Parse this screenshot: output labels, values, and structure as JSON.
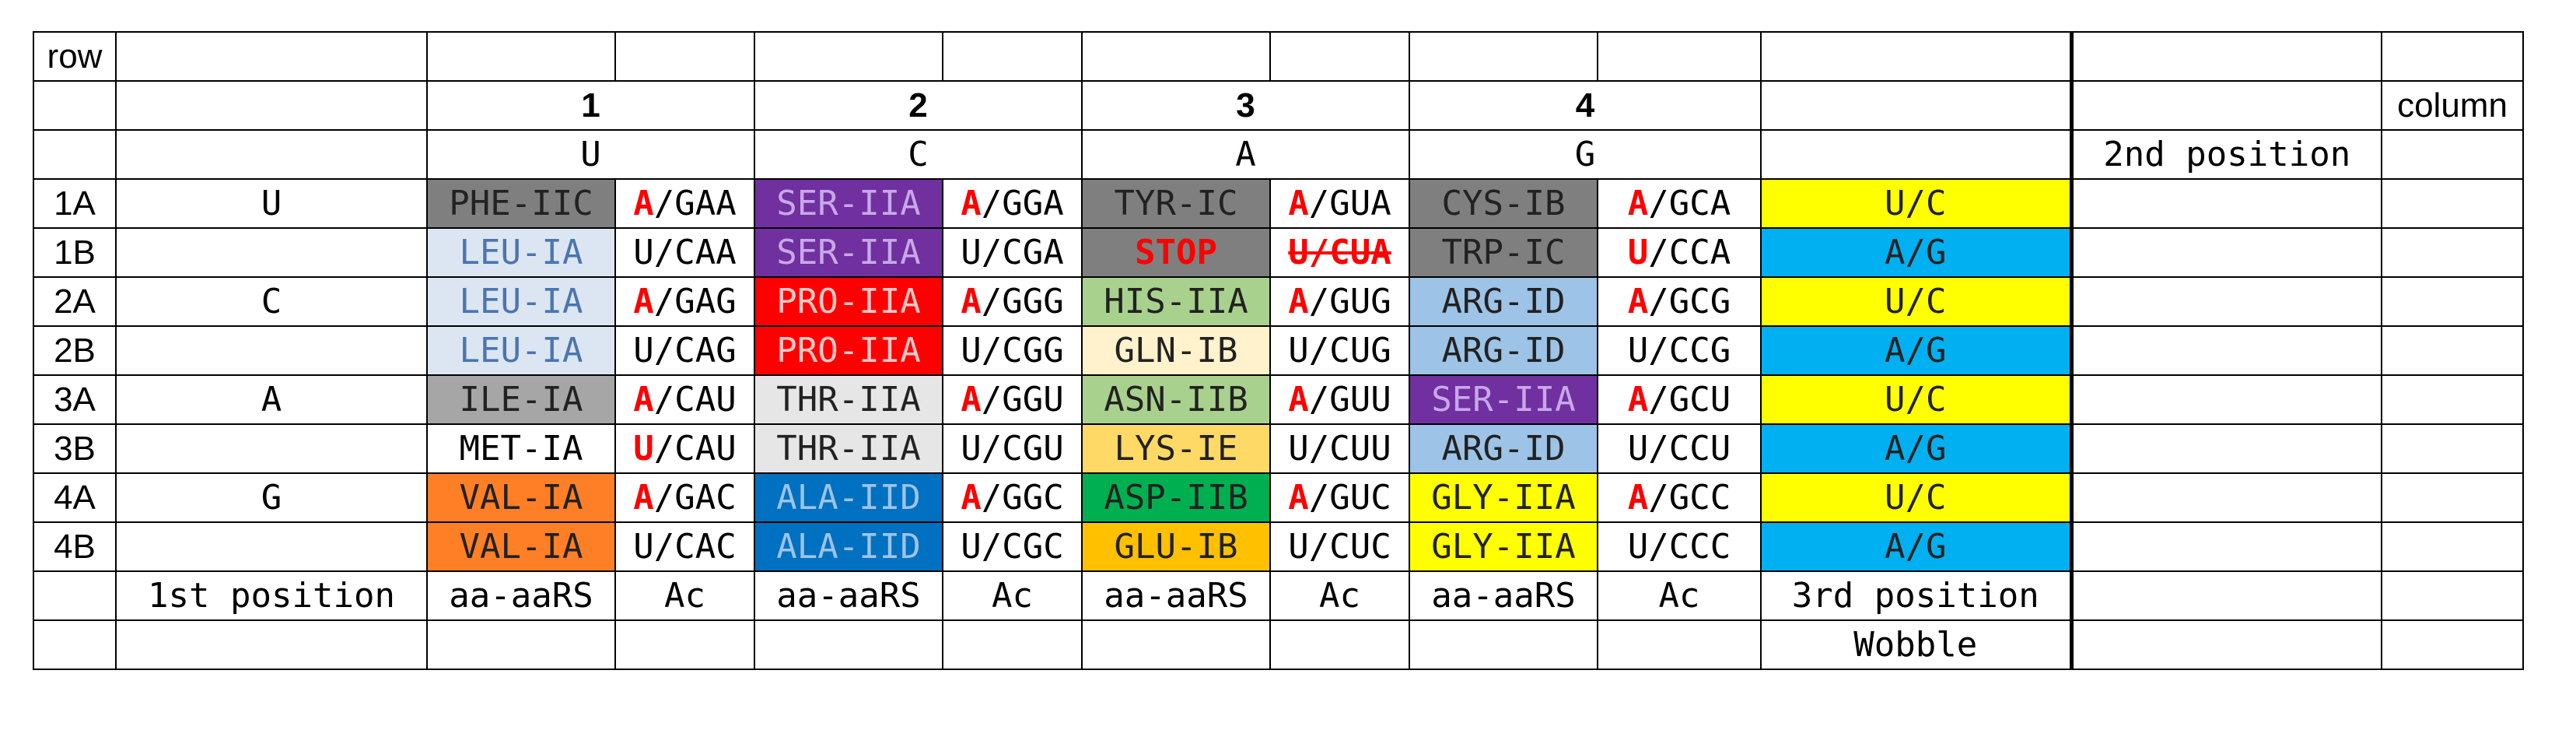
{
  "header": {
    "row_label": "row",
    "column_label": "column",
    "col_numbers": [
      "1",
      "2",
      "3",
      "4"
    ],
    "col_bases": [
      "U",
      "C",
      "A",
      "G"
    ],
    "second_position": "2nd position"
  },
  "rows": [
    {
      "id": "1A",
      "first": "U",
      "cells": [
        {
          "aa": "PHE-IIC",
          "color": "c-gray",
          "ac_pre": "A",
          "ac_post": "/GAA",
          "ac_pre_red": true
        },
        {
          "aa": "SER-IIA",
          "color": "c-purple",
          "ac_pre": "A",
          "ac_post": "/GGA",
          "ac_pre_red": true
        },
        {
          "aa": "TYR-IC",
          "color": "c-gray",
          "ac_pre": "A",
          "ac_post": "/GUA",
          "ac_pre_red": true
        },
        {
          "aa": "CYS-IB",
          "color": "c-gray",
          "ac_pre": "A",
          "ac_post": "/GCA",
          "ac_pre_red": true
        }
      ],
      "wobble": "U/C",
      "wobble_color": "c-yellow"
    },
    {
      "id": "1B",
      "first": "",
      "cells": [
        {
          "aa": "LEU-IA",
          "color": "c-lblue",
          "ac_pre": "",
          "ac_post": "U/CAA"
        },
        {
          "aa": "SER-IIA",
          "color": "c-purple",
          "ac_pre": "",
          "ac_post": "U/CGA"
        },
        {
          "aa": "STOP",
          "color": "c-gray",
          "stop": true,
          "ac_strike": "U/CUA"
        },
        {
          "aa": "TRP-IC",
          "color": "c-gray",
          "ac_pre": "U",
          "ac_post": "/CCA",
          "ac_pre_red": true
        }
      ],
      "wobble": "A/G",
      "wobble_color": "c-cyan"
    },
    {
      "id": "2A",
      "first": "C",
      "cells": [
        {
          "aa": "LEU-IA",
          "color": "c-lblue",
          "ac_pre": "A",
          "ac_post": "/GAG",
          "ac_pre_red": true
        },
        {
          "aa": "PRO-IIA",
          "color": "c-red",
          "ac_pre": "A",
          "ac_post": "/GGG",
          "ac_pre_red": true
        },
        {
          "aa": "HIS-IIA",
          "color": "c-lgreen",
          "ac_pre": "A",
          "ac_post": "/GUG",
          "ac_pre_red": true
        },
        {
          "aa": "ARG-ID",
          "color": "c-sky",
          "ac_pre": "A",
          "ac_post": "/GCG",
          "ac_pre_red": true
        }
      ],
      "wobble": "U/C",
      "wobble_color": "c-yellow"
    },
    {
      "id": "2B",
      "first": "",
      "cells": [
        {
          "aa": "LEU-IA",
          "color": "c-lblue",
          "ac_pre": "",
          "ac_post": "U/CAG"
        },
        {
          "aa": "PRO-IIA",
          "color": "c-red",
          "ac_pre": "",
          "ac_post": "U/CGG"
        },
        {
          "aa": "GLN-IB",
          "color": "c-cream",
          "ac_pre": "",
          "ac_post": "U/CUG"
        },
        {
          "aa": "ARG-ID",
          "color": "c-sky",
          "ac_pre": "",
          "ac_post": "U/CCG"
        }
      ],
      "wobble": "A/G",
      "wobble_color": "c-cyan"
    },
    {
      "id": "3A",
      "first": "A",
      "cells": [
        {
          "aa": "ILE-IA",
          "color": "c-dgray",
          "ac_pre": "A",
          "ac_post": "/CAU",
          "ac_pre_red": true
        },
        {
          "aa": "THR-IIA",
          "color": "c-lgray",
          "ac_pre": "A",
          "ac_post": "/GGU",
          "ac_pre_red": true
        },
        {
          "aa": "ASN-IIB",
          "color": "c-lgreen",
          "ac_pre": "A",
          "ac_post": "/GUU",
          "ac_pre_red": true
        },
        {
          "aa": "SER-IIA",
          "color": "c-purple",
          "ac_pre": "A",
          "ac_post": "/GCU",
          "ac_pre_red": true
        }
      ],
      "wobble": "U/C",
      "wobble_color": "c-yellow"
    },
    {
      "id": "3B",
      "first": "",
      "cells": [
        {
          "aa": "MET-IA",
          "color": "",
          "ac_pre": "U",
          "ac_post": "/CAU",
          "ac_pre_red": true
        },
        {
          "aa": "THR-IIA",
          "color": "c-lgray",
          "ac_pre": "",
          "ac_post": "U/CGU"
        },
        {
          "aa": "LYS-IE",
          "color": "c-gold",
          "ac_pre": "",
          "ac_post": "U/CUU"
        },
        {
          "aa": "ARG-ID",
          "color": "c-sky",
          "ac_pre": "",
          "ac_post": "U/CCU"
        }
      ],
      "wobble": "A/G",
      "wobble_color": "c-cyan"
    },
    {
      "id": "4A",
      "first": "G",
      "cells": [
        {
          "aa": "VAL-IA",
          "color": "c-vorange",
          "ac_pre": "A",
          "ac_post": "/GAC",
          "ac_pre_red": true
        },
        {
          "aa": "ALA-IID",
          "color": "c-dblue",
          "ac_pre": "A",
          "ac_post": "/GGC",
          "ac_pre_red": true
        },
        {
          "aa": "ASP-IIB",
          "color": "c-green",
          "ac_pre": "A",
          "ac_post": "/GUC",
          "ac_pre_red": true
        },
        {
          "aa": "GLY-IIA",
          "color": "c-yellow",
          "ac_pre": "A",
          "ac_post": "/GCC",
          "ac_pre_red": true
        }
      ],
      "wobble": "U/C",
      "wobble_color": "c-yellow"
    },
    {
      "id": "4B",
      "first": "",
      "cells": [
        {
          "aa": "VAL-IA",
          "color": "c-vorange",
          "ac_pre": "",
          "ac_post": "U/CAC"
        },
        {
          "aa": "ALA-IID",
          "color": "c-dblue",
          "ac_pre": "",
          "ac_post": "U/CGC"
        },
        {
          "aa": "GLU-IB",
          "color": "c-orange",
          "ac_pre": "",
          "ac_post": "U/CUC"
        },
        {
          "aa": "GLY-IIA",
          "color": "c-yellow",
          "ac_pre": "",
          "ac_post": "U/CCC"
        }
      ],
      "wobble": "A/G",
      "wobble_color": "c-cyan"
    }
  ],
  "footer": {
    "first_position": "1st position",
    "aa_label": "aa-aaRS",
    "ac_label": "Ac",
    "third_position": "3rd position",
    "wobble": "Wobble"
  }
}
